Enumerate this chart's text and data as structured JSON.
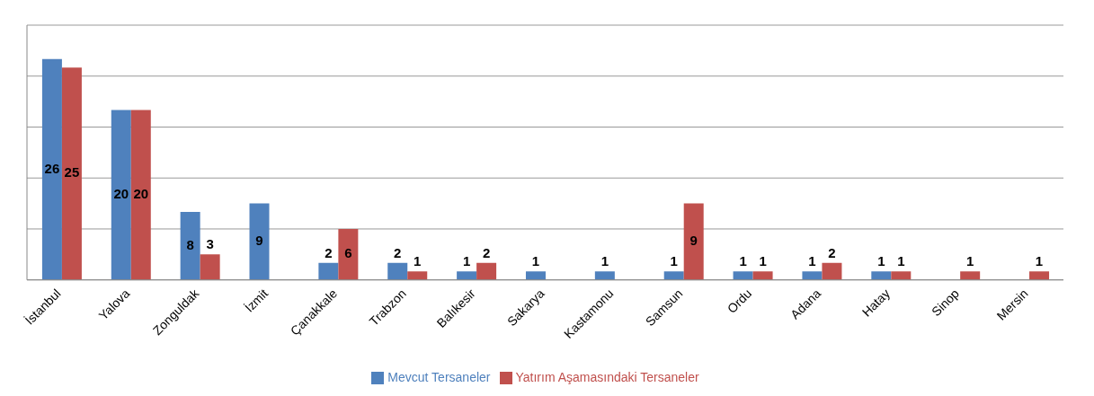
{
  "chart_data": {
    "type": "bar",
    "categories": [
      "İstanbul",
      "Yalova",
      "Zonguldak",
      "İzmit",
      "Çanakkale",
      "Trabzon",
      "Balıkesir",
      "Sakarya",
      "Kastamonu",
      "Samsun",
      "Ordu",
      "Adana",
      "Hatay",
      "Sinop",
      "Mersin"
    ],
    "series": [
      {
        "name": "Mevcut Tersaneler",
        "color": "#4f81bd",
        "values": [
          26,
          20,
          8,
          9,
          2,
          2,
          1,
          1,
          1,
          1,
          1,
          1,
          1,
          null,
          null
        ]
      },
      {
        "name": "Yatırım Aşamasındaki Tersaneler",
        "color": "#c0504d",
        "values": [
          25,
          20,
          3,
          null,
          6,
          1,
          2,
          null,
          null,
          9,
          1,
          2,
          1,
          1,
          1
        ]
      }
    ],
    "tick_labels": "x",
    "grid": "y",
    "legend": "bottom",
    "data_labels": true
  }
}
